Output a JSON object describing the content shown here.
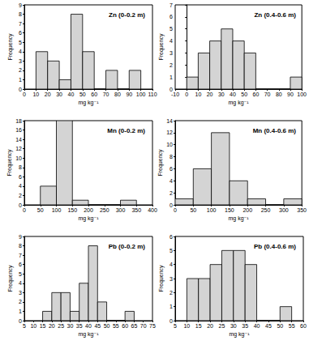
{
  "chart_data": [
    {
      "type": "histogram",
      "title": "Zn (0-0.2 m)",
      "x_label": "mg kg⁻¹",
      "y_label": "Frequency",
      "bins": [
        10,
        20,
        30,
        40,
        50,
        60,
        70,
        80,
        90,
        100
      ],
      "counts": [
        4,
        3,
        1,
        8,
        4,
        0,
        2,
        0,
        2
      ],
      "xlim": [
        0,
        110
      ],
      "xticks": [
        0,
        10,
        20,
        30,
        40,
        50,
        60,
        70,
        80,
        90,
        100,
        110
      ],
      "ylim": [
        0,
        9
      ],
      "yticks": [
        0,
        1,
        2,
        3,
        4,
        5,
        6,
        7,
        8,
        9
      ],
      "color": "#d4d4d4"
    },
    {
      "type": "histogram",
      "title": "Zn (0.4-0.6 m)",
      "x_label": "mg kg⁻¹",
      "y_label": "Frequency",
      "bins": [
        0,
        10,
        20,
        30,
        40,
        50,
        60,
        70,
        80,
        90,
        100
      ],
      "counts": [
        1,
        3,
        4,
        5,
        4,
        3,
        0,
        0,
        0,
        1
      ],
      "xlim": [
        -10,
        100
      ],
      "xticks": [
        -10,
        0,
        10,
        20,
        30,
        40,
        50,
        60,
        70,
        80,
        90,
        100
      ],
      "ylim": [
        0,
        7
      ],
      "yticks": [
        0,
        1,
        2,
        3,
        4,
        5,
        6,
        7
      ],
      "color": "#d4d4d4"
    },
    {
      "type": "histogram",
      "title": "Mn (0-0.2 m)",
      "x_label": "mg kg⁻¹",
      "y_label": "Frequency",
      "bins": [
        50,
        100,
        150,
        200,
        250,
        300,
        350
      ],
      "counts": [
        4,
        18,
        1,
        0,
        0,
        1
      ],
      "xlim": [
        0,
        400
      ],
      "xticks": [
        0,
        50,
        100,
        150,
        200,
        250,
        300,
        350,
        400
      ],
      "ylim": [
        0,
        18
      ],
      "yticks": [
        0,
        2,
        4,
        6,
        8,
        10,
        12,
        14,
        16,
        18
      ],
      "color": "#d4d4d4"
    },
    {
      "type": "histogram",
      "title": "Mn (0.4-0.6 m)",
      "x_label": "mg kg⁻¹",
      "y_label": "Frequency",
      "bins": [
        0,
        50,
        100,
        150,
        200,
        250,
        300,
        350
      ],
      "counts": [
        1,
        6,
        12,
        4,
        1,
        0,
        1
      ],
      "xlim": [
        0,
        350
      ],
      "xticks": [
        0,
        50,
        100,
        150,
        200,
        250,
        300,
        350
      ],
      "ylim": [
        0,
        14
      ],
      "yticks": [
        0,
        2,
        4,
        6,
        8,
        10,
        12,
        14
      ],
      "color": "#d4d4d4"
    },
    {
      "type": "histogram",
      "title": "Pb (0-0.2 m)",
      "x_label": "mg kg⁻¹",
      "y_label": "Frequency",
      "bins": [
        15,
        20,
        25,
        30,
        35,
        40,
        45,
        50,
        55,
        60,
        65
      ],
      "counts": [
        1,
        3,
        3,
        1,
        4,
        8,
        2,
        0,
        0,
        1
      ],
      "xlim": [
        5,
        75
      ],
      "xticks": [
        5,
        10,
        15,
        20,
        25,
        30,
        35,
        40,
        45,
        50,
        55,
        60,
        65,
        70,
        75
      ],
      "ylim": [
        0,
        9
      ],
      "yticks": [
        0,
        1,
        2,
        3,
        4,
        5,
        6,
        7,
        8,
        9
      ],
      "color": "#d4d4d4"
    },
    {
      "type": "histogram",
      "title": "Pb (0.4-0.6 m)",
      "x_label": "mg kg⁻¹",
      "y_label": "Frequency",
      "bins": [
        10,
        15,
        20,
        25,
        30,
        35,
        40,
        45,
        50,
        55
      ],
      "counts": [
        3,
        3,
        4,
        5,
        5,
        4,
        0,
        0,
        1
      ],
      "xlim": [
        5,
        60
      ],
      "xticks": [
        5,
        10,
        15,
        20,
        25,
        30,
        35,
        40,
        45,
        50,
        55,
        60
      ],
      "ylim": [
        0,
        6
      ],
      "yticks": [
        0,
        1,
        2,
        3,
        4,
        5,
        6
      ],
      "color": "#d4d4d4"
    }
  ]
}
